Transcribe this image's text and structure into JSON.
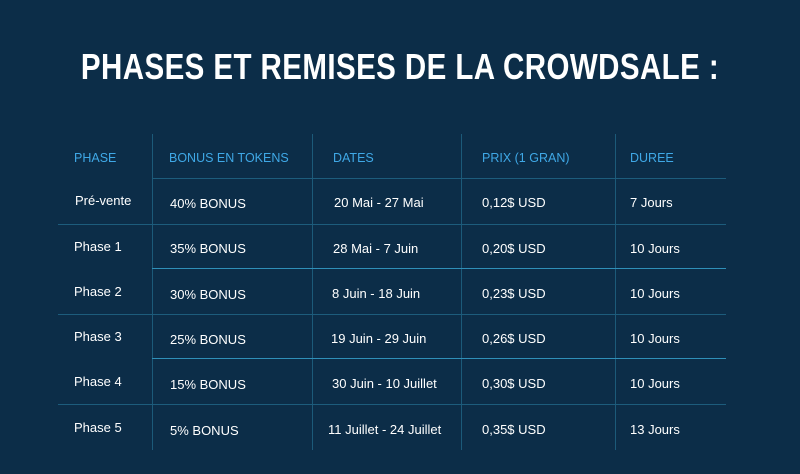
{
  "title": "PHASES ET REMISES DE LA CROWDSALE :",
  "headers": [
    "PHASE",
    "BONUS EN TOKENS",
    "DATES",
    "PRIX (1 GRAN)",
    "DUREE"
  ],
  "rows": [
    [
      "Pré-vente",
      "40% BONUS",
      "20 Mai - 27 Mai",
      "0,12$ USD",
      "7  Jours"
    ],
    [
      "Phase 1",
      "35% BONUS",
      "28 Mai - 7 Juin",
      "0,20$ USD",
      "10  Jours"
    ],
    [
      "Phase 2",
      "30% BONUS",
      "8 Juin - 18 Juin",
      "0,23$ USD",
      "10  Jours"
    ],
    [
      "Phase 3",
      "25% BONUS",
      "19 Juin - 29 Juin",
      "0,26$ USD",
      "10  Jours"
    ],
    [
      "Phase 4",
      "15% BONUS",
      "30 Juin - 10 Juillet",
      "0,30$ USD",
      "10  Jours"
    ],
    [
      "Phase 5",
      "5% BONUS",
      "11 Juillet - 24 Juillet",
      "0,35$ USD",
      "13  Jours"
    ]
  ],
  "colors": {
    "background": "#0c2d48",
    "header_text": "#3fa8e6",
    "body_text": "#ffffff",
    "grid_line": "#1d5c7c"
  }
}
